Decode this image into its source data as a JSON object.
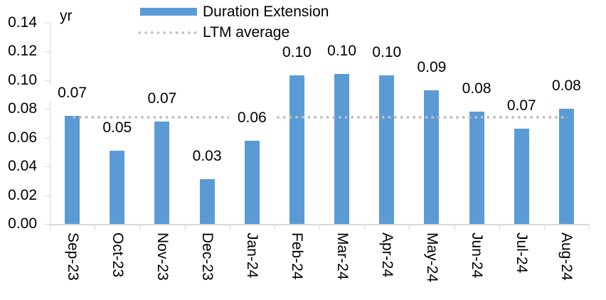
{
  "legend": {
    "items": [
      {
        "label": "Duration Extension",
        "swatch": "bar",
        "color": "#5B9BD5"
      },
      {
        "label": "LTM average",
        "swatch": "dotted-line",
        "color": "#BFBFBF"
      }
    ],
    "position": "top"
  },
  "chart_data": {
    "type": "bar",
    "title": "",
    "unit_label": "yr",
    "categories": [
      "Sep-23",
      "Oct-23",
      "Nov-23",
      "Dec-23",
      "Jan-24",
      "Feb-24",
      "Mar-24",
      "Apr-24",
      "May-24",
      "Jun-24",
      "Jul-24",
      "Aug-24"
    ],
    "series": [
      {
        "name": "Duration Extension",
        "type": "bar",
        "color": "#5B9BD5",
        "values": [
          0.07,
          0.05,
          0.07,
          0.03,
          0.06,
          0.1,
          0.1,
          0.1,
          0.09,
          0.08,
          0.07,
          0.08
        ],
        "values_precise": [
          0.075,
          0.051,
          0.071,
          0.031,
          0.058,
          0.103,
          0.104,
          0.103,
          0.093,
          0.078,
          0.066,
          0.08
        ],
        "data_labels": [
          "0.07",
          "0.05",
          "0.07",
          "0.03",
          "0.06",
          "0.10",
          "0.10",
          "0.10",
          "0.09",
          "0.08",
          "0.07",
          "0.08"
        ]
      },
      {
        "name": "LTM average",
        "type": "line",
        "style": "dotted",
        "color": "#BFBFBF",
        "value": 0.074
      }
    ],
    "xlabel": "",
    "ylabel": "yr",
    "ylim": [
      0,
      0.14
    ],
    "ytick_step": 0.02,
    "ytick_labels": [
      "0.00",
      "0.02",
      "0.04",
      "0.06",
      "0.08",
      "0.10",
      "0.12",
      "0.14"
    ],
    "grid": false,
    "legend_position": "top",
    "x_label_rotation_deg": 90
  },
  "colors": {
    "bar": "#5B9BD5",
    "ltm_line": "#BFBFBF",
    "axis": "#D9D9D9",
    "text": "#000000",
    "background": "#FFFFFF"
  }
}
